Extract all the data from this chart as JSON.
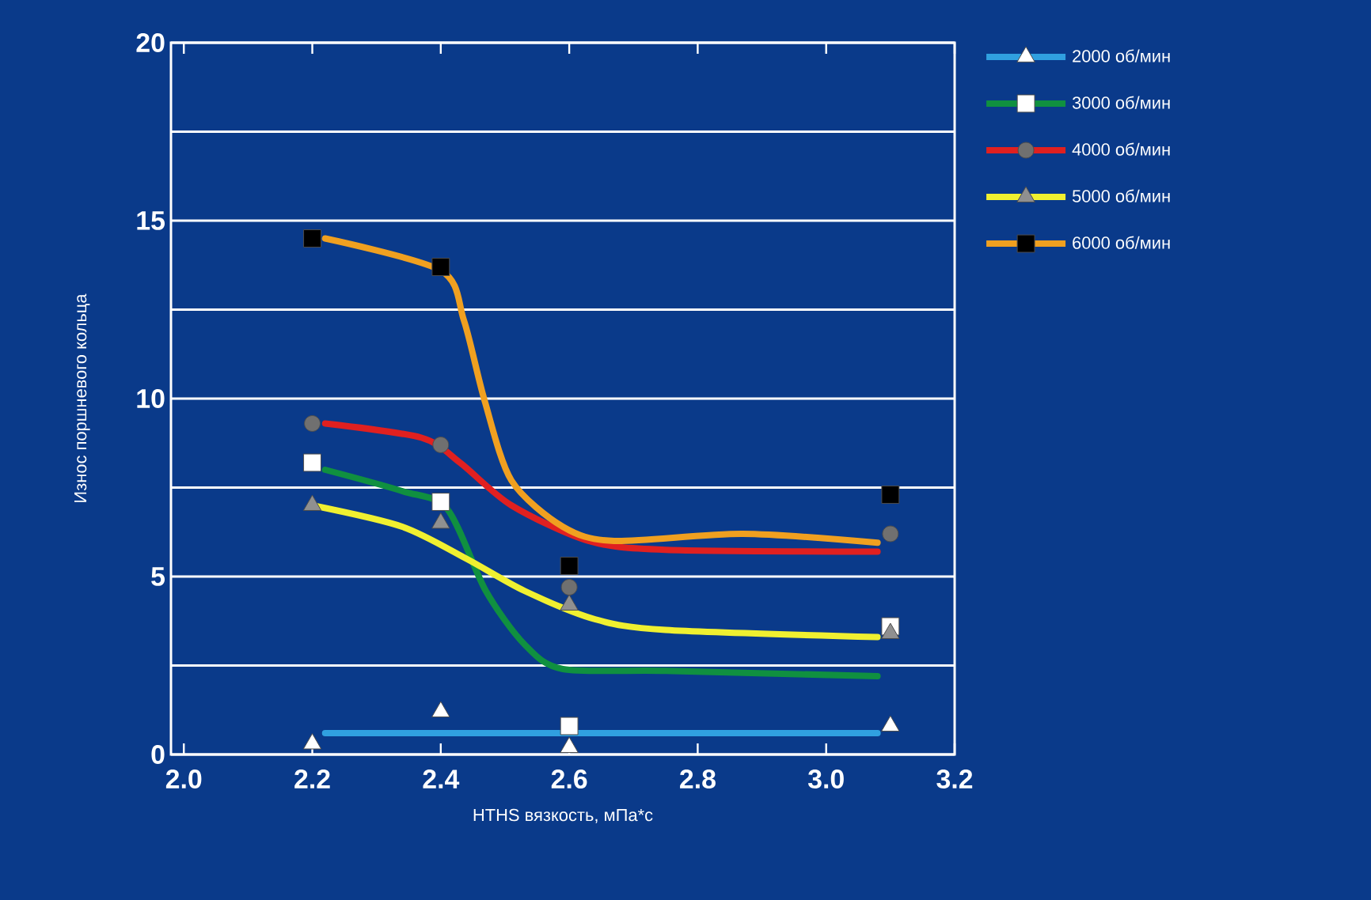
{
  "chart_data": {
    "type": "scatter",
    "xlabel": "HTHS вязкость, мПа*с",
    "ylabel": "Износ поршневого кольца",
    "x": [
      2.2,
      2.4,
      2.6,
      3.1
    ],
    "xlim": [
      1.98,
      3.2
    ],
    "ylim": [
      0,
      20
    ],
    "xticks": [
      {
        "value": 2.0,
        "label": "2.0"
      },
      2.2,
      2.4,
      2.6,
      2.8,
      {
        "value": 3.0,
        "label": "3.0"
      },
      3.2
    ],
    "yticks": [
      0,
      {
        "value": 2.5,
        "label": null
      },
      5,
      {
        "value": 7.5,
        "label": null
      },
      10,
      {
        "value": 12.5,
        "label": null
      },
      15,
      {
        "value": 17.5,
        "label": null
      },
      20
    ],
    "grid": "y",
    "legend": "right",
    "series": [
      {
        "name": "2000 об/мин",
        "marker": "triangle",
        "color": "#ffffff",
        "values": [
          0.3,
          1.2,
          0.2,
          0.8
        ]
      },
      {
        "type": "line",
        "color": "#30a0e0",
        "x": [
          2.22,
          3.08
        ],
        "values": [
          0.6,
          0.6
        ]
      },
      {
        "name": "3000 об/мин",
        "marker": "square",
        "color": "#ffffff",
        "values": [
          8.2,
          7.1,
          0.8,
          3.6
        ]
      },
      {
        "type": "line",
        "color": "#109040",
        "x": [
          2.22,
          2.34,
          2.41,
          2.47,
          2.53,
          2.59,
          2.75,
          3.08
        ],
        "values": [
          8.0,
          7.4,
          6.9,
          4.6,
          3.1,
          2.4,
          2.35,
          2.2
        ]
      },
      {
        "name": "4000 об/мин",
        "marker": "circle",
        "color": "#707070",
        "values": [
          9.3,
          8.7,
          4.7,
          6.2
        ]
      },
      {
        "type": "line",
        "color": "#e02020",
        "x": [
          2.22,
          2.37,
          2.43,
          2.51,
          2.63,
          2.75,
          3.08
        ],
        "values": [
          9.3,
          8.9,
          8.2,
          7.0,
          6.0,
          5.75,
          5.7
        ]
      },
      {
        "name": "5000 об/мин",
        "marker": "triangle",
        "color": "#909090",
        "values": [
          7.0,
          6.5,
          4.2,
          3.4
        ]
      },
      {
        "type": "line",
        "color": "#f0f030",
        "x": [
          2.2,
          2.34,
          2.44,
          2.53,
          2.64,
          2.75,
          3.08
        ],
        "values": [
          7.0,
          6.4,
          5.5,
          4.6,
          3.8,
          3.5,
          3.3
        ]
      },
      {
        "name": "6000 об/мин",
        "marker": "square",
        "color": "#000000",
        "values": [
          14.5,
          13.7,
          5.3,
          7.3
        ]
      },
      {
        "type": "line",
        "color": "#f0a020",
        "x": [
          2.22,
          2.4,
          2.436,
          2.468,
          2.51,
          2.59,
          2.67,
          2.87,
          3.08
        ],
        "values": [
          14.5,
          13.6,
          12.2,
          9.96,
          7.7,
          6.4,
          6.0,
          6.2,
          5.95
        ]
      }
    ]
  }
}
